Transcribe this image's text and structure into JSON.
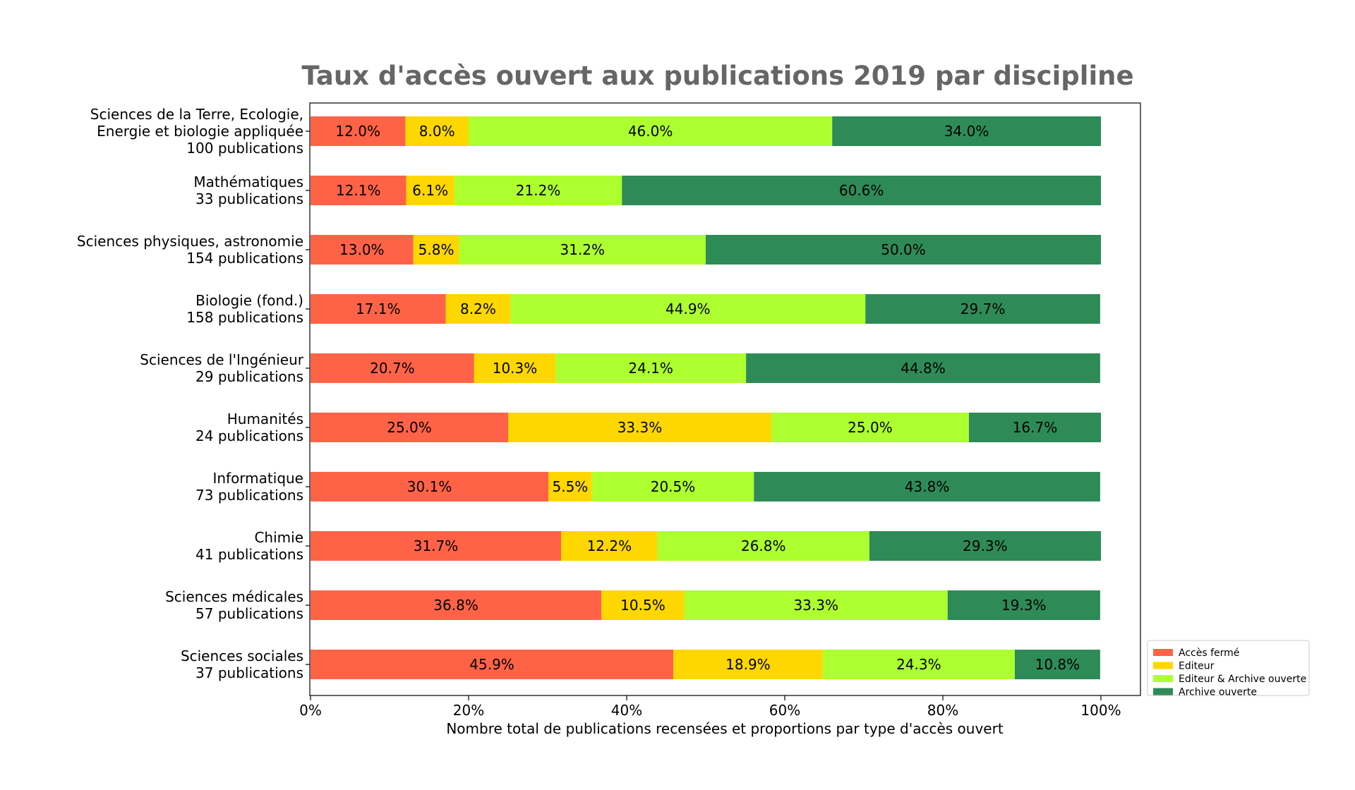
{
  "chart_data": {
    "type": "bar",
    "orientation": "horizontal",
    "stacked": true,
    "title": "Taux d'accès ouvert aux publications 2019 par discipline",
    "xlabel": "Nombre total de publications recensées et proportions par type d'accès ouvert",
    "xlim": [
      0,
      100
    ],
    "xticks": [
      "0%",
      "20%",
      "40%",
      "60%",
      "80%",
      "100%"
    ],
    "legend_position": "lower-right outside",
    "categories": [
      {
        "name": "Sciences de la Terre, Ecologie,",
        "name2": "Energie et biologie appliquée",
        "count": "100 publications"
      },
      {
        "name": "Mathématiques",
        "name2": "",
        "count": "33 publications"
      },
      {
        "name": "Sciences physiques, astronomie",
        "name2": "",
        "count": "154 publications"
      },
      {
        "name": "Biologie (fond.)",
        "name2": "",
        "count": "158 publications"
      },
      {
        "name": "Sciences de l'Ingénieur",
        "name2": "",
        "count": "29 publications"
      },
      {
        "name": "Humanités",
        "name2": "",
        "count": "24 publications"
      },
      {
        "name": "Informatique",
        "name2": "",
        "count": "73 publications"
      },
      {
        "name": "Chimie",
        "name2": "",
        "count": "41 publications"
      },
      {
        "name": "Sciences médicales",
        "name2": "",
        "count": "57 publications"
      },
      {
        "name": "Sciences sociales",
        "name2": "",
        "count": "37 publications"
      }
    ],
    "series": [
      {
        "name": "Accès fermé",
        "color": "#ff6347",
        "values": [
          12.0,
          12.1,
          13.0,
          17.1,
          20.7,
          25.0,
          30.1,
          31.7,
          36.8,
          45.9
        ],
        "labels": [
          "12.0%",
          "12.1%",
          "13.0%",
          "17.1%",
          "20.7%",
          "25.0%",
          "30.1%",
          "31.7%",
          "36.8%",
          "45.9%"
        ]
      },
      {
        "name": "Editeur",
        "color": "#ffd700",
        "values": [
          8.0,
          6.1,
          5.8,
          8.2,
          10.3,
          33.3,
          5.5,
          12.2,
          10.5,
          18.9
        ],
        "labels": [
          "8.0%",
          "6.1%",
          "5.8%",
          "8.2%",
          "10.3%",
          "33.3%",
          "5.5%",
          "12.2%",
          "10.5%",
          "18.9%"
        ]
      },
      {
        "name": "Editeur & Archive ouverte",
        "color": "#adff2f",
        "values": [
          46.0,
          21.2,
          31.2,
          44.9,
          24.1,
          25.0,
          20.5,
          26.8,
          33.3,
          24.3
        ],
        "labels": [
          "46.0%",
          "21.2%",
          "31.2%",
          "44.9%",
          "24.1%",
          "25.0%",
          "20.5%",
          "26.8%",
          "33.3%",
          "24.3%"
        ]
      },
      {
        "name": "Archive ouverte",
        "color": "#2e8b57",
        "values": [
          34.0,
          60.6,
          50.0,
          29.7,
          44.8,
          16.7,
          43.8,
          29.3,
          19.3,
          10.8
        ],
        "labels": [
          "34.0%",
          "60.6%",
          "50.0%",
          "29.7%",
          "44.8%",
          "16.7%",
          "43.8%",
          "29.3%",
          "19.3%",
          "10.8%"
        ]
      }
    ]
  }
}
